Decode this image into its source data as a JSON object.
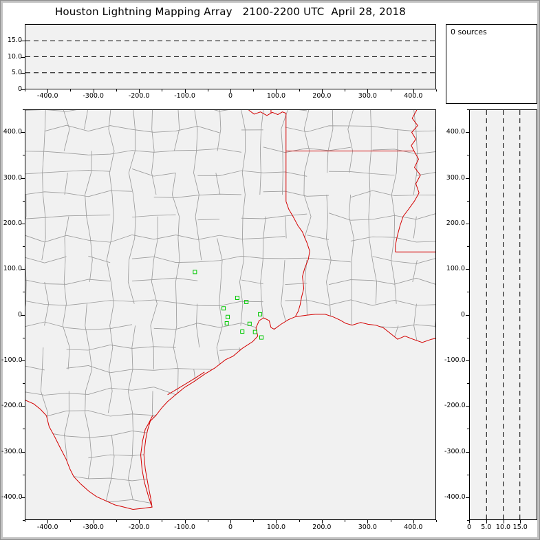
{
  "title": "Houston Lightning Mapping Array   2100-2200 UTC  April 28, 2018",
  "sources_panel": {
    "label": "0 sources"
  },
  "axes": {
    "ew_ticks": [
      "-400.0",
      "-300.0",
      "-200.0",
      "-100.0",
      "0",
      "100.0",
      "200.0",
      "300.0",
      "400.0"
    ],
    "ew_values": [
      -400,
      -300,
      -200,
      -100,
      0,
      100,
      200,
      300,
      400
    ],
    "ns_ticks": [
      "400.0",
      "300.0",
      "200.0",
      "100.0",
      "0",
      "-100.0",
      "-200.0",
      "-300.0",
      "-400.0"
    ],
    "ns_values": [
      400,
      300,
      200,
      100,
      0,
      -100,
      -200,
      -300,
      -400
    ],
    "alt_ticks_top": [
      "15.0",
      "10.0",
      "5.0",
      "0"
    ],
    "alt_values_top": [
      15,
      10,
      5,
      0
    ],
    "alt_ticks_right": [
      "0",
      "5.0",
      "10.0",
      "15.0"
    ],
    "alt_values_right": [
      0,
      5,
      10,
      15
    ],
    "distance_range_km": [
      -450,
      450
    ],
    "altitude_range_km": [
      0,
      20
    ]
  },
  "chart_data": [
    {
      "type": "scatter",
      "panel": "altitude-vs-east-west-distance",
      "xlim": [
        -450,
        450
      ],
      "ylim": [
        0,
        20
      ],
      "x_ticks": [
        -400,
        -300,
        -200,
        -100,
        0,
        100,
        200,
        300,
        400
      ],
      "y_ticks": [
        0,
        5,
        10,
        15
      ],
      "gridlines_y": [
        5,
        10,
        15
      ],
      "grid_style": "dashed",
      "series": [
        {
          "name": "vhf-sources",
          "points": []
        }
      ]
    },
    {
      "type": "bar",
      "panel": "altitude-histogram",
      "annotation": "0 sources",
      "values": []
    },
    {
      "type": "scatter",
      "panel": "plan-view-map",
      "xlim": [
        -450,
        450
      ],
      "ylim": [
        -450,
        450
      ],
      "x_ticks": [
        -400,
        -300,
        -200,
        -100,
        0,
        100,
        200,
        300,
        400
      ],
      "y_ticks": [
        400,
        300,
        200,
        100,
        0,
        -100,
        -200,
        -300,
        -400
      ],
      "series": [
        {
          "name": "vhf-sources",
          "points": []
        },
        {
          "name": "lma-stations",
          "marker": "open-square",
          "color": "#00c800",
          "points_km": [
            [
              -78,
              94
            ],
            [
              15,
              37
            ],
            [
              35,
              28
            ],
            [
              -15,
              14
            ],
            [
              -6,
              -5
            ],
            [
              65,
              1
            ],
            [
              -8,
              -19
            ],
            [
              42,
              -20
            ],
            [
              26,
              -37
            ],
            [
              54,
              -38
            ],
            [
              68,
              -50
            ]
          ]
        }
      ]
    },
    {
      "type": "scatter",
      "panel": "north-south-distance-vs-altitude",
      "xlim": [
        0,
        20
      ],
      "ylim": [
        -450,
        450
      ],
      "x_ticks": [
        0,
        5,
        10,
        15
      ],
      "gridlines_x": [
        5,
        10,
        15
      ],
      "grid_style": "dashed",
      "series": [
        {
          "name": "vhf-sources",
          "points": []
        }
      ]
    }
  ],
  "map": {
    "colors": {
      "panel_bg": "#f1f1f1",
      "county_line": "#9b9b9b",
      "state_border": "#d40000",
      "station": "#00c800",
      "frame": "#c2c2c2"
    },
    "borders": {
      "coast_and_rio_grande": [
        [
          -450,
          -188
        ],
        [
          -432,
          -196
        ],
        [
          -417,
          -208
        ],
        [
          -404,
          -222
        ],
        [
          -398,
          -246
        ],
        [
          -386,
          -268
        ],
        [
          -373,
          -294
        ],
        [
          -361,
          -317
        ],
        [
          -352,
          -340
        ],
        [
          -344,
          -356
        ],
        [
          -329,
          -372
        ],
        [
          -311,
          -388
        ],
        [
          -294,
          -400
        ],
        [
          -274,
          -409
        ],
        [
          -254,
          -418
        ],
        [
          -234,
          -423
        ],
        [
          -214,
          -428
        ],
        [
          -194,
          -426
        ],
        [
          -172,
          -423
        ],
        [
          -175,
          -404
        ],
        [
          -181,
          -373
        ],
        [
          -187,
          -339
        ],
        [
          -190,
          -308
        ],
        [
          -186,
          -274
        ],
        [
          -182,
          -254
        ],
        [
          -176,
          -234
        ],
        [
          -164,
          -222
        ],
        [
          -150,
          -204
        ],
        [
          -138,
          -191
        ],
        [
          -124,
          -179
        ],
        [
          -101,
          -160
        ],
        [
          -80,
          -147
        ],
        [
          -57,
          -131
        ],
        [
          -34,
          -117
        ],
        [
          -11,
          -99
        ],
        [
          6,
          -91
        ],
        [
          26,
          -74
        ],
        [
          49,
          -59
        ],
        [
          60,
          -47
        ],
        [
          56,
          -29
        ],
        [
          63,
          -13
        ],
        [
          73,
          -7
        ],
        [
          85,
          -13
        ],
        [
          89,
          -28
        ],
        [
          96,
          -32
        ],
        [
          111,
          -21
        ],
        [
          127,
          -11
        ],
        [
          141,
          -5
        ],
        [
          153,
          -3
        ],
        [
          168,
          -1
        ],
        [
          186,
          1
        ],
        [
          208,
          1
        ],
        [
          226,
          -5
        ],
        [
          241,
          -12
        ],
        [
          253,
          -19
        ],
        [
          267,
          -23
        ],
        [
          286,
          -17
        ],
        [
          302,
          -21
        ],
        [
          319,
          -23
        ],
        [
          336,
          -29
        ],
        [
          351,
          -41
        ],
        [
          367,
          -54
        ],
        [
          383,
          -47
        ],
        [
          401,
          -54
        ],
        [
          421,
          -61
        ],
        [
          441,
          -54
        ],
        [
          460,
          -50
        ]
      ],
      "laguna_madre": [
        [
          -174,
          -418
        ],
        [
          -181,
          -396
        ],
        [
          -189,
          -368
        ],
        [
          -194,
          -340
        ],
        [
          -197,
          -308
        ],
        [
          -193,
          -278
        ],
        [
          -187,
          -252
        ],
        [
          -178,
          -236
        ],
        [
          -171,
          -222
        ]
      ],
      "matagorda_bay": [
        [
          -138,
          -176
        ],
        [
          -118,
          -164
        ],
        [
          -98,
          -152
        ],
        [
          -77,
          -139
        ],
        [
          -57,
          -126
        ]
      ],
      "red_river_tx_ok": [
        [
          40,
          450
        ],
        [
          52,
          441
        ],
        [
          66,
          446
        ],
        [
          80,
          438
        ],
        [
          92,
          445
        ],
        [
          104,
          440
        ],
        [
          114,
          446
        ],
        [
          122,
          443
        ]
      ],
      "ok_ar_border": [
        [
          89,
          444
        ],
        [
          89,
          450
        ]
      ],
      "tx_ar_border": [
        [
          122,
          443
        ],
        [
          122,
          249
        ]
      ],
      "ar_la_border_33n": [
        [
          122,
          360
        ],
        [
          403,
          360
        ]
      ],
      "sabine_river_tx_la": [
        [
          122,
          249
        ],
        [
          128,
          232
        ],
        [
          138,
          215
        ],
        [
          148,
          196
        ],
        [
          158,
          182
        ],
        [
          168,
          158
        ],
        [
          174,
          140
        ],
        [
          171,
          122
        ],
        [
          163,
          102
        ],
        [
          158,
          84
        ],
        [
          161,
          58
        ],
        [
          156,
          38
        ],
        [
          153,
          22
        ],
        [
          149,
          8
        ],
        [
          143,
          -3
        ]
      ],
      "mississippi_river_la_ms": [
        [
          409,
          450
        ],
        [
          399,
          432
        ],
        [
          411,
          416
        ],
        [
          398,
          401
        ],
        [
          407,
          386
        ],
        [
          397,
          372
        ],
        [
          403,
          360
        ],
        [
          413,
          342
        ],
        [
          404,
          324
        ],
        [
          417,
          307
        ],
        [
          407,
          288
        ],
        [
          414,
          268
        ],
        [
          404,
          250
        ],
        [
          391,
          232
        ],
        [
          379,
          216
        ],
        [
          372,
          195
        ],
        [
          366,
          172
        ],
        [
          362,
          152
        ],
        [
          362,
          138
        ]
      ],
      "la_ms_border_31n": [
        [
          362,
          138
        ],
        [
          450,
          138
        ]
      ]
    }
  }
}
